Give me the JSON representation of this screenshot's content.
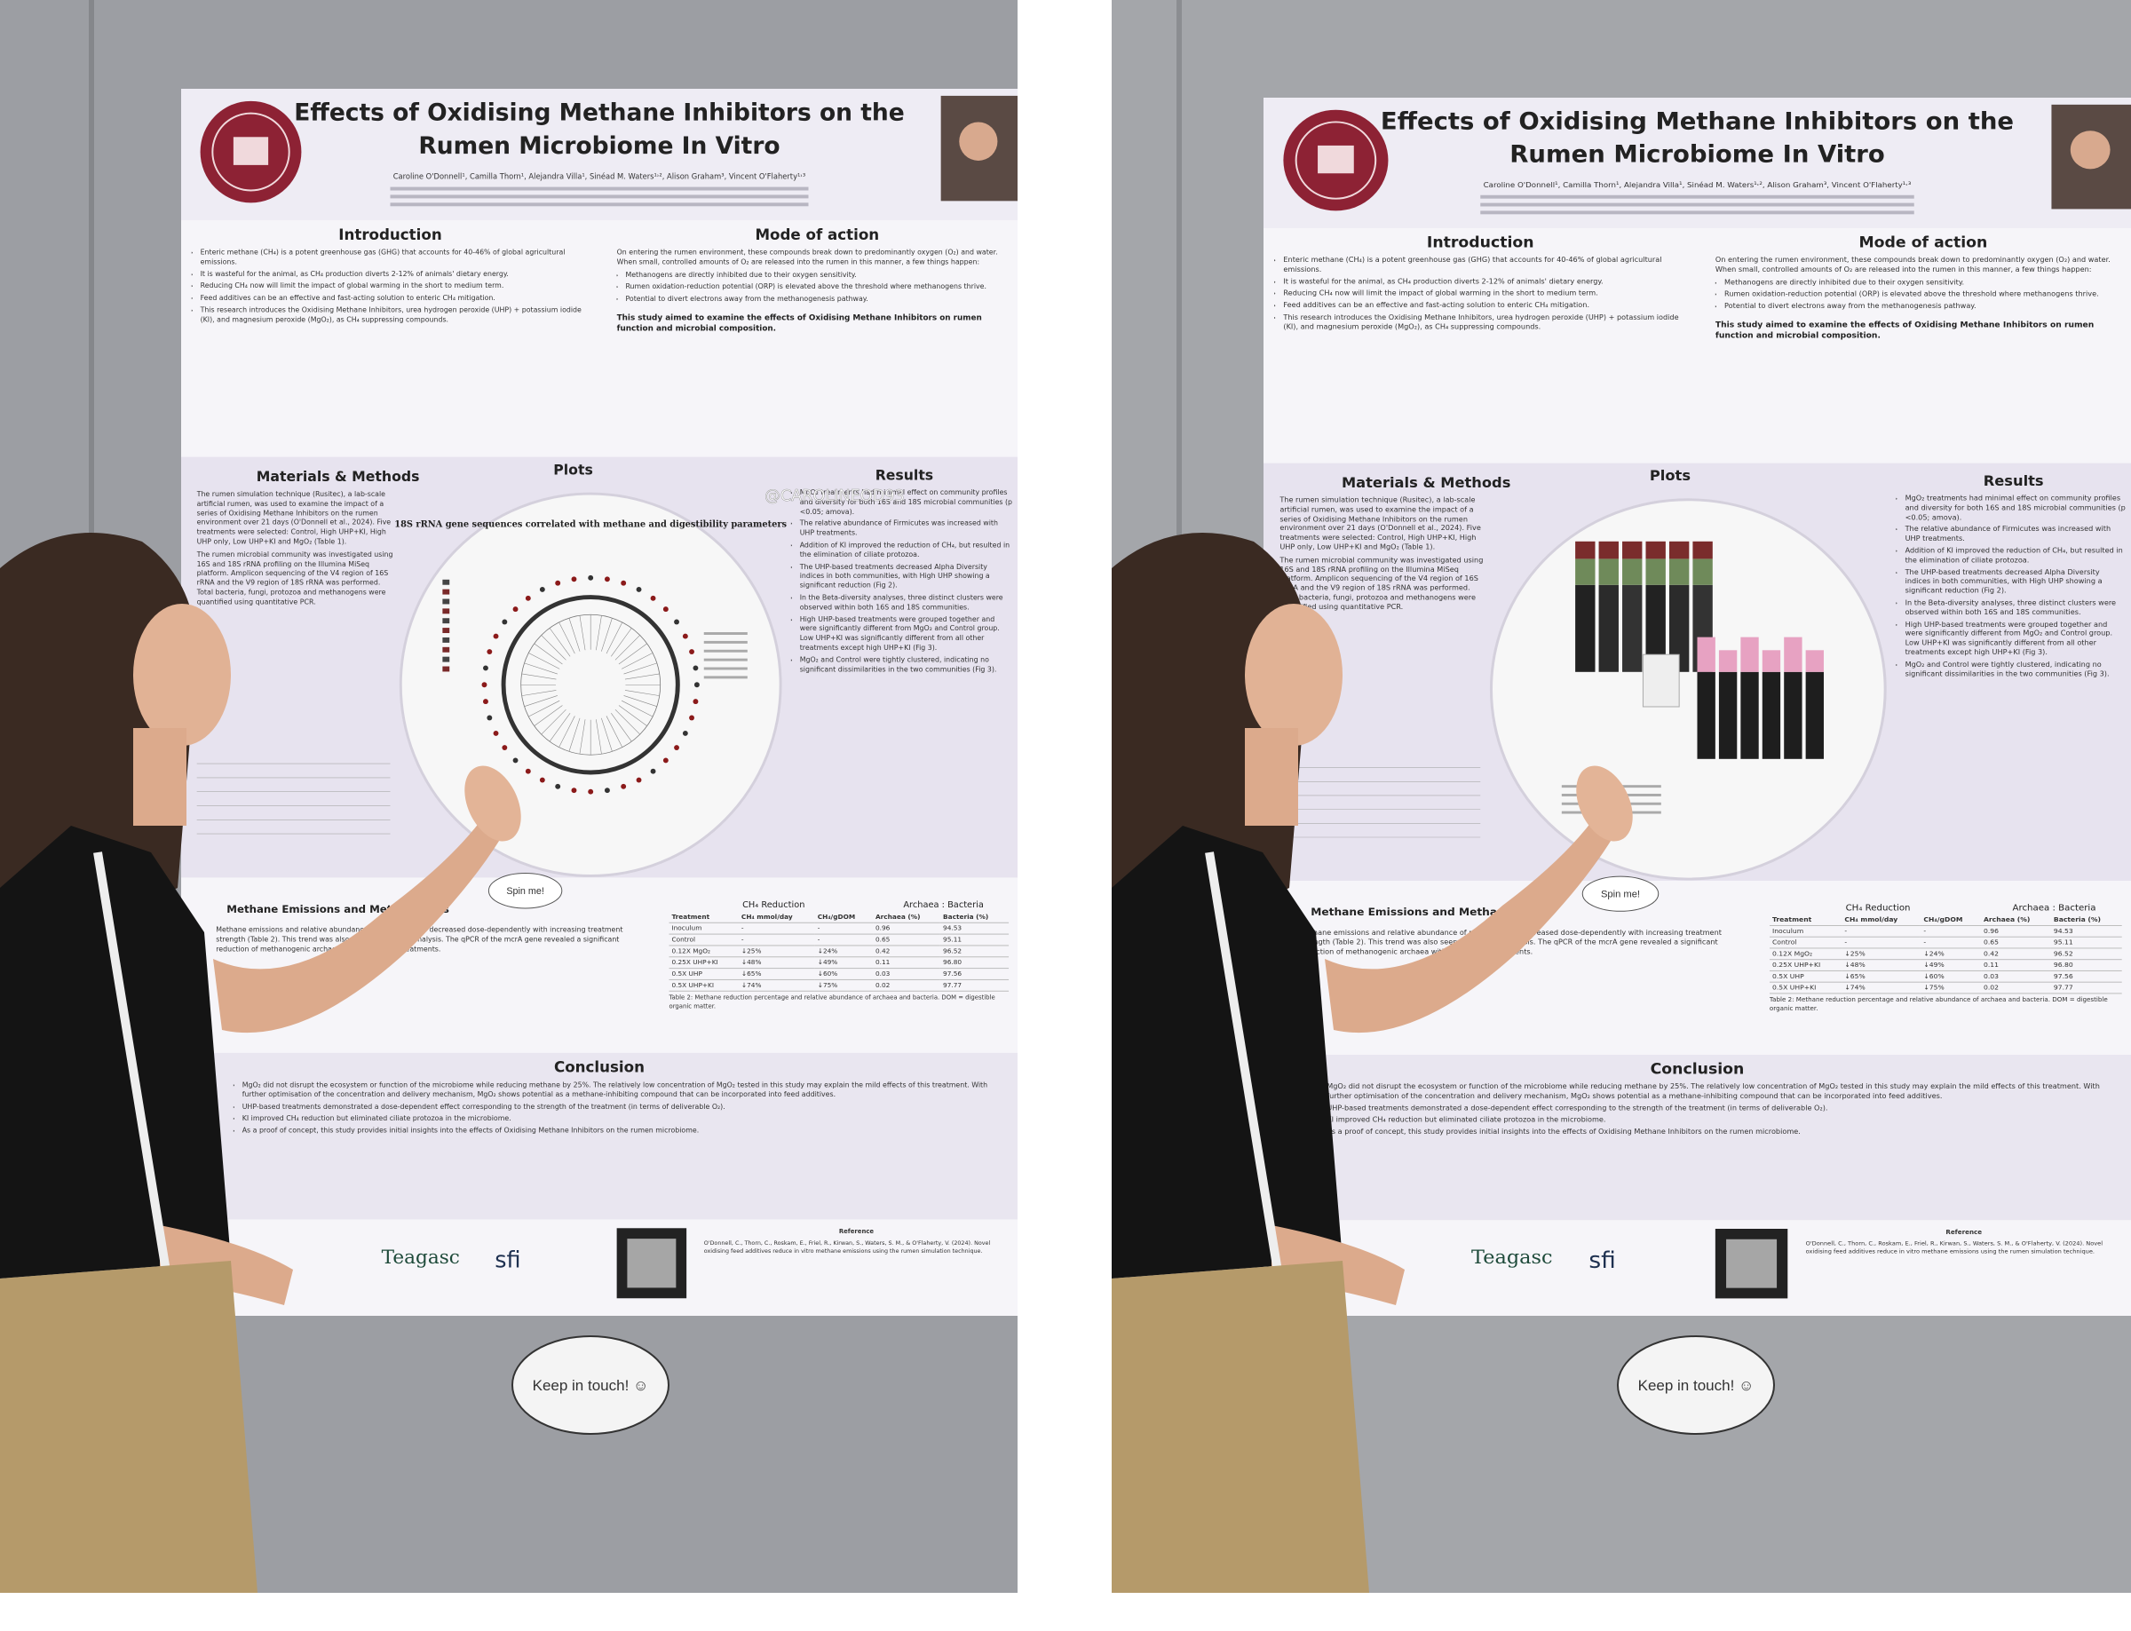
{
  "poster": {
    "title_line1": "Effects of Oxidising Methane Inhibitors on the",
    "title_line2": "Rumen Microbiome In Vitro",
    "authors": "Caroline O'Donnell¹, Camilla Thorn¹, Alejandra Villa¹, Sinéad M. Waters¹˒², Alison Graham³, Vincent O'Flaherty¹˒³",
    "introduction": {
      "heading": "Introduction",
      "bullets": [
        "Enteric methane (CH₄) is a potent greenhouse gas (GHG) that accounts for 40-46% of global agricultural emissions.",
        "It is wasteful for the animal, as CH₄ production diverts 2-12% of animals' dietary energy.",
        "Reducing CH₄ now will limit the impact of global warming in the short to medium term.",
        "Feed additives can be an effective and fast-acting solution to enteric CH₄ mitigation.",
        "This research introduces the Oxidising Methane Inhibitors, urea hydrogen peroxide (UHP) + potassium iodide (KI), and magnesium peroxide (MgO₂), as CH₄ suppressing compounds."
      ]
    },
    "mode_of_action": {
      "heading": "Mode of action",
      "text": "On entering the rumen environment, these compounds break down to predominantly oxygen (O₂) and water. When small, controlled amounts of O₂ are released into the rumen in this manner, a few things happen:",
      "bullets": [
        "Methanogens are directly inhibited due to their oxygen sensitivity.",
        "Rumen oxidation-reduction potential (ORP) is elevated above the threshold where methanogens thrive.",
        "Potential to divert electrons away from the methanogenesis pathway."
      ],
      "aim": "This study aimed to examine the effects of Oxidising Methane Inhibitors on rumen function and microbial composition."
    },
    "materials_methods": {
      "heading": "Materials & Methods",
      "paragraphs": [
        "The rumen simulation technique (Rusitec), a lab-scale artificial rumen, was used to examine the impact of a series of Oxidising Methane Inhibitors on the rumen environment over 21 days (O'Donnell et al., 2024). Five treatments were selected: Control, High UHP+KI, High UHP only, Low UHP+KI and MgO₂ (Table 1).",
        "The rumen microbial community was investigated using 16S and 18S rRNA profiling on the Illumina MiSeq platform. Amplicon sequencing of the V4 region of 16S rRNA and the V9 region of 18S rRNA was performed. Total bacteria, fungi, protozoa and methanogens were quantified using quantitative PCR."
      ]
    },
    "plots_heading": "Plots",
    "plot_title": "18S rRNA gene sequences correlated with methane and digestibility parameters",
    "results": {
      "heading": "Results",
      "bullets": [
        "MgO₂ treatments had minimal effect on community profiles and diversity for both 16S and 18S microbial communities (p <0.05; amova).",
        "The relative abundance of Firmicutes was increased with UHP treatments.",
        "Addition of KI improved the reduction of CH₄, but resulted in the elimination of ciliate protozoa.",
        "The UHP-based treatments decreased Alpha Diversity indices in both communities, with High UHP showing a significant reduction (Fig 2).",
        "In the Beta-diversity analyses, three distinct clusters were observed within both 16S and 18S communities.",
        "High UHP-based treatments were grouped together and were significantly different from MgO₂ and Control group. Low UHP+KI was significantly different from all other treatments except high UHP+KI (Fig 3).",
        "MgO₂ and Control were tightly clustered, indicating no significant dissimilarities in the two communities (Fig 3)."
      ]
    },
    "methane": {
      "heading": "Methane Emissions and Methanogens",
      "text": "Methane emissions and relative abundance of methanogens decreased dose-dependently with increasing treatment strength (Table 2). This trend was also seen in the qPCR analysis. The qPCR of the mcrA gene revealed a significant reduction of methanogenic archaea with UHP-based treatments."
    },
    "table": {
      "group1": "CH₄ Reduction",
      "group2": "Archaea : Bacteria",
      "header": [
        "Treatment",
        "CH₄ mmol/day",
        "CH₄/gDOM",
        "Archaea (%)",
        "Bacteria (%)"
      ],
      "rows": [
        [
          "Inoculum",
          "-",
          "-",
          "0.96",
          "94.53"
        ],
        [
          "Control",
          "-",
          "-",
          "0.65",
          "95.11"
        ],
        [
          "0.12X MgO₂",
          "↓25%",
          "↓24%",
          "0.42",
          "96.52"
        ],
        [
          "0.25X UHP+KI",
          "↓48%",
          "↓49%",
          "0.11",
          "96.80"
        ],
        [
          "0.5X UHP",
          "↓65%",
          "↓60%",
          "0.03",
          "97.56"
        ],
        [
          "0.5X UHP+KI",
          "↓74%",
          "↓75%",
          "0.02",
          "97.77"
        ]
      ],
      "caption": "Table 2: Methane reduction percentage and relative abundance of archaea and bacteria. DOM = digestible organic matter."
    },
    "conclusion": {
      "heading": "Conclusion",
      "bullets": [
        "MgO₂ did not disrupt the ecosystem or function of the microbiome while reducing methane by 25%. The relatively low concentration of MgO₂ tested in this study may explain the mild effects of this treatment. With further optimisation of the concentration and delivery mechanism, MgO₂ shows potential as a methane-inhibiting compound that can be incorporated into feed additives.",
        "UHP-based treatments demonstrated a dose-dependent effect corresponding to the strength of the treatment (in terms of deliverable O₂).",
        "KI improved CH₄ reduction but eliminated ciliate protozoa in the microbiome.",
        "As a proof of concept, this study provides initial insights into the effects of Oxidising Methane Inhibitors on the rumen microbiome."
      ]
    },
    "logos": [
      "Teagasc",
      "sfi"
    ],
    "reference_heading": "Reference",
    "reference": "O'Donnell, C., Thorn, C., Roskam, E., Friel, R., Kirwan, S., Waters, S. M., & O'Flaherty, V. (2024). Novel oxidising feed additives reduce in vitro methane emissions using the rumen simulation technique."
  },
  "stickers": {
    "spin": "Spin me!",
    "keep": "Keep in touch! ☺"
  },
  "watermark": "@CAROLINEOD93"
}
